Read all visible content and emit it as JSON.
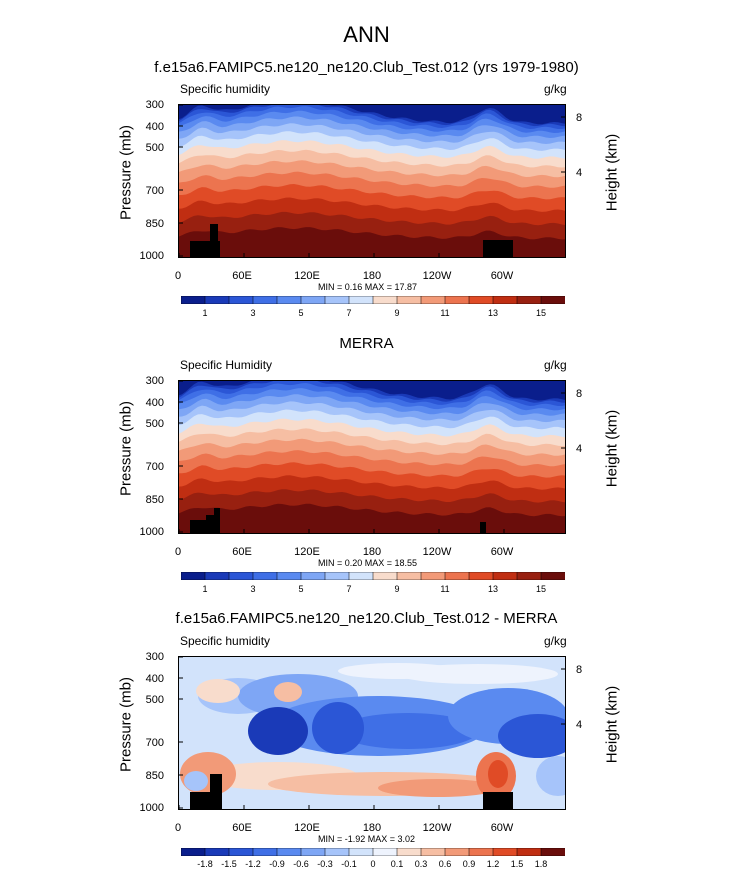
{
  "title": "ANN",
  "chart_data": [
    {
      "type": "heatmap",
      "title": "f.e15a6.FAMIPC5.ne120_ne120.Club_Test.012 (yrs 1979-1980)",
      "subtitle_left": "Specific humidity",
      "units": "g/kg",
      "ylabel": "Pressure (mb)",
      "y2label": "Height (km)",
      "yticks": [
        "300",
        "400",
        "500",
        "700",
        "850",
        "1000"
      ],
      "y2ticks": [
        "8",
        "4"
      ],
      "xticks": [
        "0",
        "60E",
        "120E",
        "180",
        "120W",
        "60W"
      ],
      "min_label": "MIN =   0.16  MAX =  17.87",
      "min": 0.16,
      "max": 17.87,
      "colorbar_labels": [
        "1",
        "3",
        "5",
        "7",
        "9",
        "11",
        "13",
        "15"
      ],
      "colorbar_colors": [
        "#0a1e8c",
        "#1a3ab8",
        "#2b56d6",
        "#3f6fe6",
        "#5a8af0",
        "#7ea6f5",
        "#a6c4fa",
        "#d2e3fb",
        "#f8dccc",
        "#f6bea3",
        "#f29a78",
        "#ec744f",
        "#e04b26",
        "#c02e12",
        "#982010",
        "#6a0d0b"
      ]
    },
    {
      "type": "heatmap",
      "title": "MERRA",
      "subtitle_left": "Specific Humidity",
      "units": "g/kg",
      "ylabel": "Pressure (mb)",
      "y2label": "Height (km)",
      "yticks": [
        "300",
        "400",
        "500",
        "700",
        "850",
        "1000"
      ],
      "y2ticks": [
        "8",
        "4"
      ],
      "xticks": [
        "0",
        "60E",
        "120E",
        "180",
        "120W",
        "60W"
      ],
      "min_label": "MIN =   0.20  MAX =  18.55",
      "min": 0.2,
      "max": 18.55,
      "colorbar_labels": [
        "1",
        "3",
        "5",
        "7",
        "9",
        "11",
        "13",
        "15"
      ],
      "colorbar_colors": [
        "#0a1e8c",
        "#1a3ab8",
        "#2b56d6",
        "#3f6fe6",
        "#5a8af0",
        "#7ea6f5",
        "#a6c4fa",
        "#d2e3fb",
        "#f8dccc",
        "#f6bea3",
        "#f29a78",
        "#ec744f",
        "#e04b26",
        "#c02e12",
        "#982010",
        "#6a0d0b"
      ]
    },
    {
      "type": "heatmap",
      "title": "f.e15a6.FAMIPC5.ne120_ne120.Club_Test.012 - MERRA",
      "subtitle_left": "Specific humidity",
      "units": "g/kg",
      "ylabel": "Pressure (mb)",
      "y2label": "Height (km)",
      "yticks": [
        "300",
        "400",
        "500",
        "700",
        "850",
        "1000"
      ],
      "y2ticks": [
        "8",
        "4"
      ],
      "xticks": [
        "0",
        "60E",
        "120E",
        "180",
        "120W",
        "60W"
      ],
      "min_label": "MIN = -1.92  MAX =   3.02",
      "min": -1.92,
      "max": 3.02,
      "colorbar_labels": [
        "-1.8",
        "-1.5",
        "-1.2",
        "-0.9",
        "-0.6",
        "-0.3",
        "-0.1",
        "0",
        "0.1",
        "0.3",
        "0.6",
        "0.9",
        "1.2",
        "1.5",
        "1.8"
      ],
      "colorbar_colors": [
        "#0a1e8c",
        "#1a3ab8",
        "#2b56d6",
        "#3f6fe6",
        "#5a8af0",
        "#7ea6f5",
        "#a6c4fa",
        "#d2e3fb",
        "#eef3fd",
        "#f8dccc",
        "#f6bea3",
        "#f29a78",
        "#ec744f",
        "#e04b26",
        "#c02e12",
        "#6a0d0b"
      ]
    }
  ]
}
